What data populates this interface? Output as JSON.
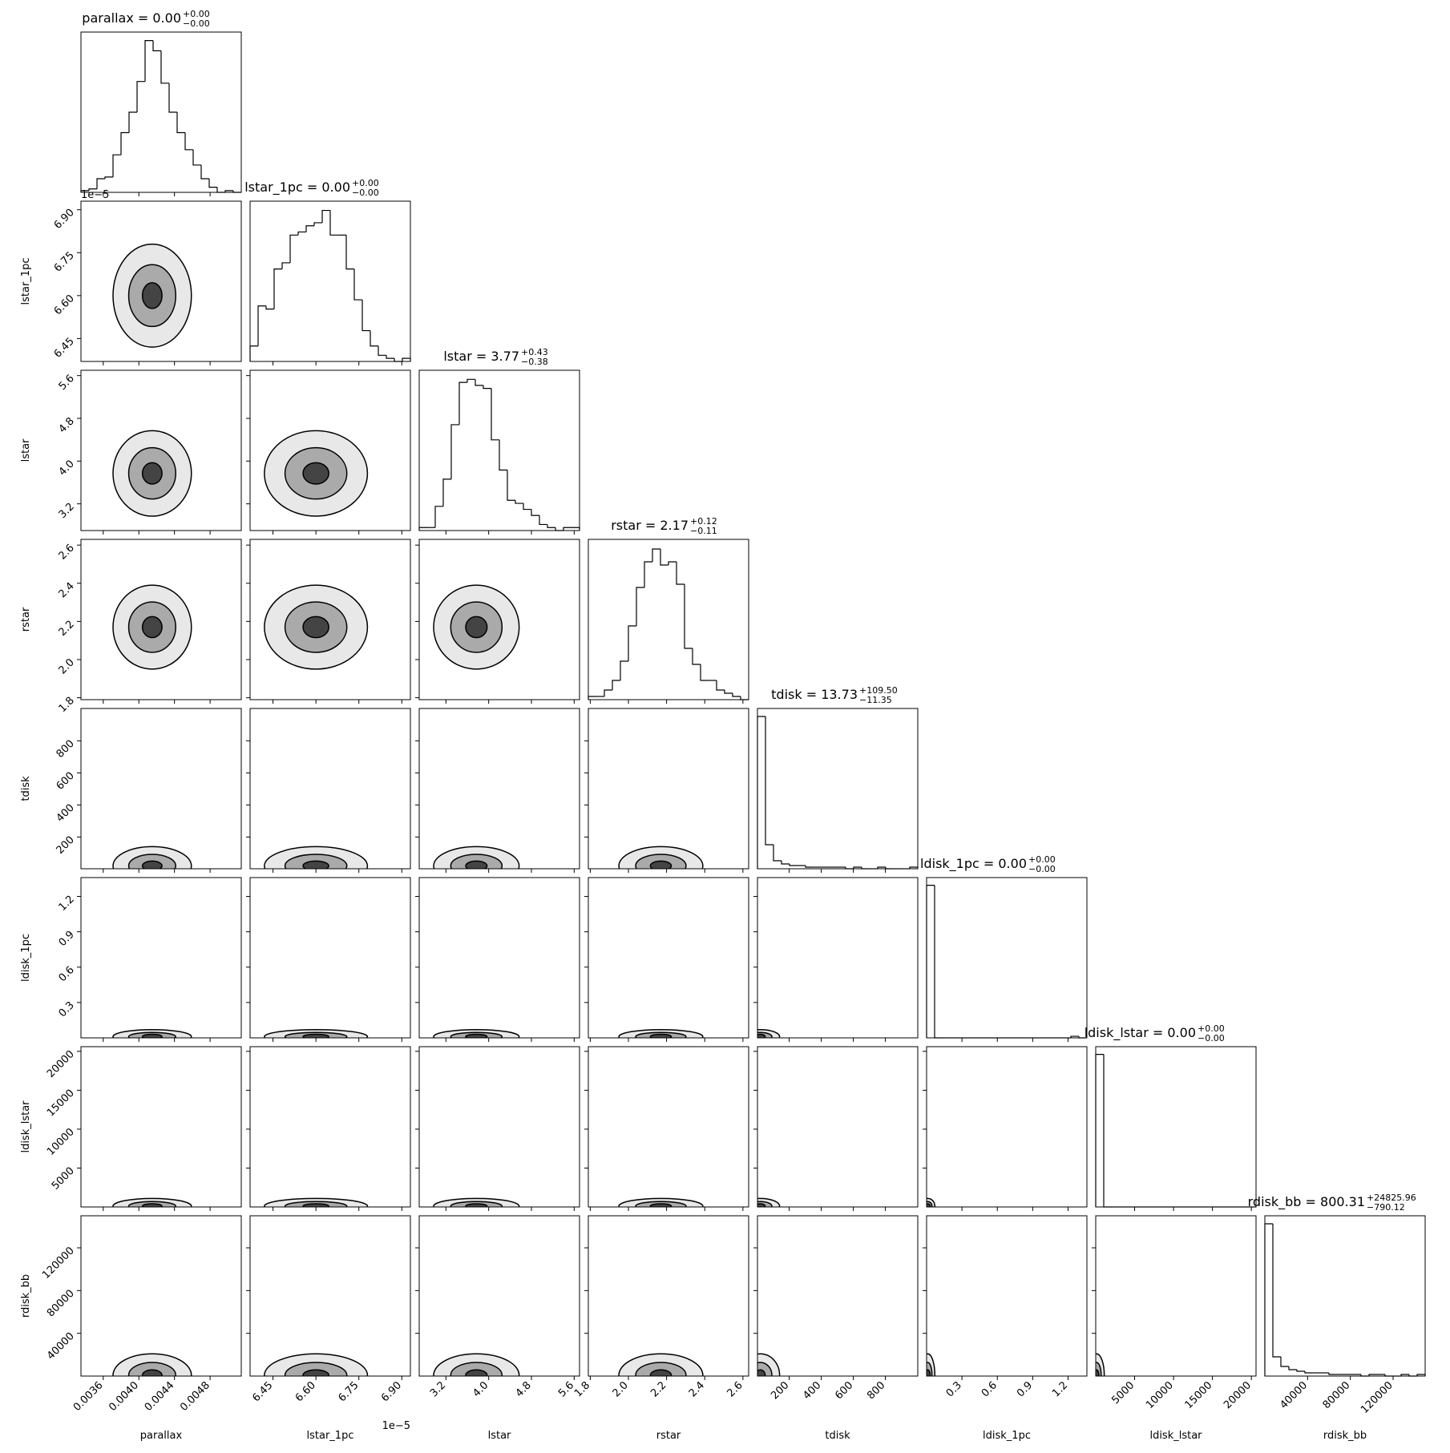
{
  "chart_data": {
    "type": "corner",
    "parameters": [
      {
        "name": "parallax",
        "title": "parallax = 0.00",
        "upper": "+0.00",
        "lower": "−0.00",
        "lim": [
          0.00335,
          0.00515
        ],
        "ticks": [
          0.0036,
          {
            "value": 0.004,
            "label": "0.0040"
          },
          0.0044,
          0.0048
        ],
        "bins": [
          0.00335,
          0.00344,
          0.00353,
          0.00362,
          0.00371,
          0.0038,
          0.00389,
          0.00398,
          0.00407,
          0.00416,
          0.00425,
          0.00434,
          0.00443,
          0.00452,
          0.00461,
          0.0047,
          0.00479,
          0.00488,
          0.00497,
          0.00506,
          0.00515
        ],
        "counts": [
          1,
          2,
          8,
          9,
          22,
          35,
          47,
          65,
          89,
          83,
          64,
          47,
          35,
          25,
          16,
          8,
          3,
          0,
          1,
          0
        ],
        "count_lim": [
          0,
          94
        ],
        "peak": 0.00415,
        "spread": 0.00022
      },
      {
        "name": "lstar_1pc",
        "title": "lstar_1pc = 0.00",
        "upper": "+0.00",
        "lower": "−0.00",
        "lim": [
          6.37e-05,
          6.93e-05
        ],
        "offset_text": "1e−5",
        "ticks": [
          {
            "value": 6.45e-05,
            "label": "6.45"
          },
          {
            "value": 6.6e-05,
            "label": "6.60"
          },
          {
            "value": 6.75e-05,
            "label": "6.75"
          },
          {
            "value": 6.9e-05,
            "label": "6.90"
          }
        ],
        "bins": [
          6.37e-05,
          6.398e-05,
          6.426e-05,
          6.454e-05,
          6.482e-05,
          6.51e-05,
          6.538e-05,
          6.566e-05,
          6.594e-05,
          6.622e-05,
          6.65e-05,
          6.678e-05,
          6.706e-05,
          6.734e-05,
          6.762e-05,
          6.79e-05,
          6.818e-05,
          6.846e-05,
          6.874e-05,
          6.902e-05,
          6.93e-05
        ],
        "counts": [
          5,
          18,
          17,
          30,
          32,
          41,
          42,
          44,
          45,
          49,
          41,
          41,
          30,
          20,
          10,
          5,
          2,
          1,
          0,
          1
        ],
        "count_lim": [
          0,
          52
        ],
        "peak": 6.6e-05,
        "spread": 9e-07
      },
      {
        "name": "lstar",
        "title": "lstar = 3.77",
        "upper": "+0.43",
        "lower": "−0.38",
        "lim": [
          2.7,
          5.7
        ],
        "ticks": [
          3.2,
          {
            "value": 4,
            "label": "4.0"
          },
          4.8,
          5.6
        ],
        "bins": [
          2.7,
          2.85,
          3.0,
          3.15,
          3.3,
          3.45,
          3.6,
          3.75,
          3.9,
          4.05,
          4.2,
          4.35,
          4.5,
          4.65,
          4.8,
          4.95,
          5.1,
          5.25,
          5.4,
          5.55,
          5.7
        ],
        "counts": [
          1,
          1,
          8,
          17,
          35,
          49,
          50,
          48,
          47,
          30,
          20,
          10,
          9,
          7,
          5,
          2,
          1,
          0,
          1,
          1
        ],
        "count_lim": [
          0,
          53
        ],
        "peak": 3.77,
        "spread": 0.4
      },
      {
        "name": "rstar",
        "title": "rstar = 2.17",
        "upper": "+0.12",
        "lower": "−0.11",
        "lim": [
          1.79,
          2.63
        ],
        "ticks": [
          1.8,
          {
            "value": 2,
            "label": "2.0"
          },
          2.2,
          2.4,
          2.6
        ],
        "bins": [
          1.79,
          1.832,
          1.874,
          1.916,
          1.958,
          2.0,
          2.042,
          2.084,
          2.126,
          2.168,
          2.21,
          2.252,
          2.294,
          2.336,
          2.378,
          2.42,
          2.462,
          2.504,
          2.546,
          2.588,
          2.63
        ],
        "counts": [
          1,
          1,
          3,
          6,
          12,
          23,
          35,
          43,
          47,
          42,
          43,
          36,
          16,
          11,
          6,
          6,
          3,
          2,
          1,
          0
        ],
        "count_lim": [
          0,
          50
        ],
        "peak": 2.17,
        "spread": 0.11
      },
      {
        "name": "tdisk",
        "title": "tdisk = 13.73",
        "upper": "+109.50",
        "lower": "−11.35",
        "lim": [
          2,
          1002
        ],
        "ticks": [
          200,
          400,
          600,
          800
        ],
        "bins": [
          2,
          52,
          102,
          152,
          202,
          252,
          302,
          352,
          402,
          452,
          502,
          552,
          602,
          652,
          702,
          752,
          802,
          852,
          902,
          952,
          1002
        ],
        "counts": [
          95,
          15,
          5,
          3,
          2,
          2,
          1,
          1,
          1,
          1,
          1,
          0,
          1,
          0,
          0,
          1,
          0,
          0,
          0,
          1
        ],
        "count_lim": [
          0,
          100
        ],
        "peak": 20,
        "spread": 60
      },
      {
        "name": "ldisk_1pc",
        "title": "ldisk_1pc = 0.00",
        "upper": "+0.00",
        "lower": "−0.00",
        "lim": [
          0,
          1.36
        ],
        "ticks": [
          0.3,
          0.6,
          0.9,
          1.2
        ],
        "bins": [
          0,
          0.068,
          0.136,
          0.204,
          0.272,
          0.34,
          0.408,
          0.476,
          0.544,
          0.612,
          0.68,
          0.748,
          0.816,
          0.884,
          0.952,
          1.02,
          1.088,
          1.156,
          1.224,
          1.292,
          1.36
        ],
        "counts": [
          99,
          0,
          0,
          0,
          0,
          0,
          0,
          0,
          0,
          0,
          0,
          0,
          0,
          0,
          0,
          0,
          0,
          0,
          1,
          0
        ],
        "count_lim": [
          0,
          104
        ],
        "peak": 0.01,
        "spread": 0.03
      },
      {
        "name": "ldisk_lstar",
        "title": "ldisk_lstar = 0.00",
        "upper": "+0.00",
        "lower": "−0.00",
        "lim": [
          0,
          20600
        ],
        "ticks": [
          5000,
          10000,
          15000,
          20000
        ],
        "bins": [
          0,
          1030,
          2060,
          3090,
          4120,
          5150,
          6180,
          7210,
          8240,
          9270,
          10300,
          11330,
          12360,
          13390,
          14420,
          15450,
          16480,
          17510,
          18540,
          19570,
          20600
        ],
        "counts": [
          99,
          0,
          0,
          0,
          0,
          0,
          0,
          0,
          0,
          0,
          0,
          0,
          0,
          0,
          0,
          0,
          0,
          0,
          0,
          0
        ],
        "count_lim": [
          0,
          104
        ],
        "peak": 100,
        "spread": 500
      },
      {
        "name": "rdisk_bb",
        "title": "rdisk_bb = 800.31",
        "upper": "+24825.96",
        "lower": "−790.12",
        "lim": [
          10,
          150010
        ],
        "ticks": [
          40000,
          80000,
          120000
        ],
        "bins": [
          10,
          7510,
          15010,
          22510,
          30010,
          37510,
          45010,
          52510,
          60010,
          67510,
          75010,
          82510,
          90010,
          97510,
          105010,
          112510,
          120010,
          127510,
          135010,
          142510,
          150010
        ],
        "counts": [
          95,
          12,
          6,
          4,
          3,
          2,
          2,
          2,
          1,
          1,
          1,
          1,
          0,
          1,
          1,
          0,
          0,
          1,
          0,
          1
        ],
        "count_lim": [
          0,
          100
        ],
        "peak": 800,
        "spread": 10000
      }
    ]
  }
}
